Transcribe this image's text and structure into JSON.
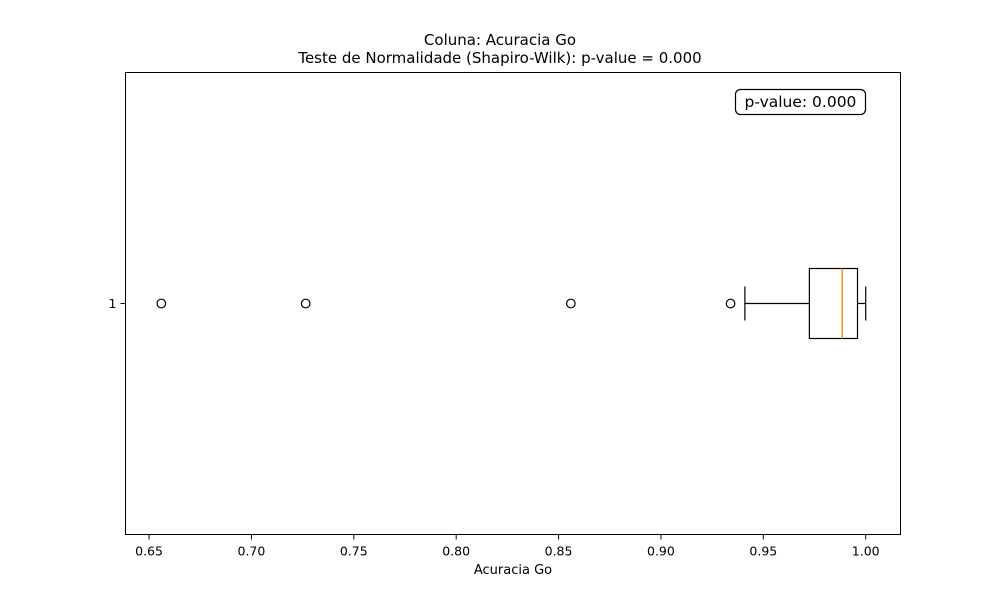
{
  "chart_data": {
    "type": "boxplot",
    "orientation": "horizontal",
    "title": "Coluna: Acuracia Go",
    "subtitle": "Teste de Normalidade (Shapiro-Wilk): p-value = 0.000",
    "xlabel": "Acuracia Go",
    "ylabel": "",
    "xlim": [
      0.6385,
      1.017
    ],
    "x_ticks": [
      0.65,
      0.7,
      0.75,
      0.8,
      0.85,
      0.9,
      0.95,
      1.0
    ],
    "x_tick_labels": [
      "0.65",
      "0.70",
      "0.75",
      "0.80",
      "0.85",
      "0.90",
      "0.95",
      "1.00"
    ],
    "categories": [
      "1"
    ],
    "boxes": [
      {
        "category": "1",
        "whisker_low": 0.941,
        "q1": 0.9725,
        "median": 0.9885,
        "q3": 0.996,
        "whisker_high": 1.0,
        "outliers": [
          0.656,
          0.7265,
          0.856,
          0.934
        ]
      }
    ],
    "annotation": "p-value: 0.000",
    "annotation_position": "top-right",
    "grid": false,
    "colors": {
      "box": "#000000",
      "median": "#ff7f0e",
      "outlier": "#000000"
    }
  }
}
